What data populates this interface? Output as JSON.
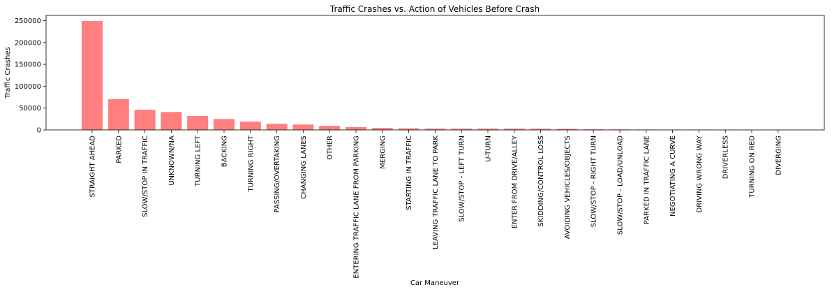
{
  "chart_data": {
    "type": "bar",
    "title": "Traffic Crashes vs. Action of Vehicles Before Crash",
    "xlabel": "Car Maneuver",
    "ylabel": "Traffic Crashes",
    "ylim": [
      0,
      262000
    ],
    "yticks": [
      0,
      50000,
      100000,
      150000,
      200000,
      250000
    ],
    "bar_color": "#ff7f7f",
    "grid": false,
    "categories": [
      "STRAIGHT AHEAD",
      "PARKED",
      "SLOW/STOP IN TRAFFIC",
      "UNKNOWN/NA",
      "TURNING LEFT",
      "BACKING",
      "TURNING RIGHT",
      "PASSING/OVERTAKING",
      "CHANGING LANES",
      "OTHER",
      "ENTERING TRAFFIC LANE FROM PARKING",
      "MERGING",
      "STARTING IN TRAFFIC",
      "LEAVING TRAFFIC LANE TO PARK",
      "SLOW/STOP - LEFT TURN",
      "U-TURN",
      "ENTER FROM DRIVE/ALLEY",
      "SKIDDING/CONTROL LOSS",
      "AVOIDING VEHICLES/OBJECTS",
      "SLOW/STOP - RIGHT TURN",
      "SLOW/STOP - LOAD/UNLOAD",
      "PARKED IN TRAFFIC LANE",
      "NEGOTIATING A CURVE",
      "DRIVING WRONG WAY",
      "DRIVERLESS",
      "TURNING ON RED",
      "DIVERGING"
    ],
    "values": [
      249000,
      70500,
      46000,
      41000,
      32000,
      25000,
      19000,
      14000,
      12500,
      9500,
      6500,
      4500,
      3500,
      3000,
      3000,
      3000,
      3000,
      2800,
      2500,
      1500,
      1200,
      1000,
      800,
      700,
      300,
      200,
      100
    ]
  }
}
